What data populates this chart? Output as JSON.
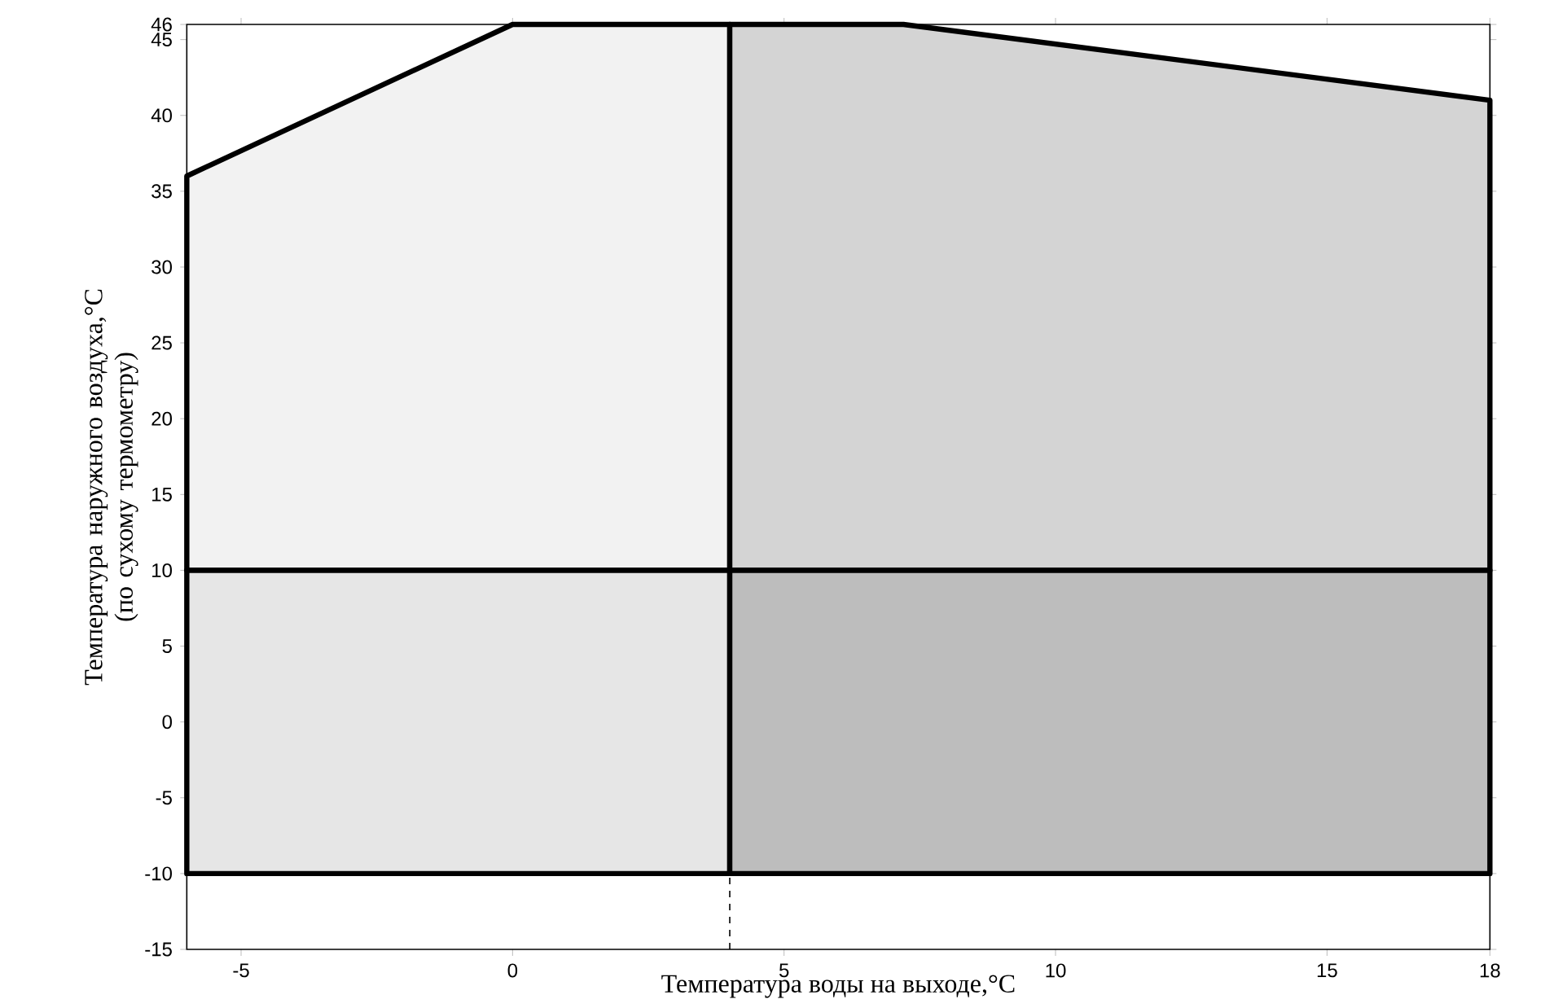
{
  "chart_data": {
    "type": "area",
    "xlabel": "Температура воды на выходе,°C",
    "ylabel": "Температура наружного воздуха,°C (по сухому термометру)",
    "xlim": [
      -6,
      18
    ],
    "xticks": [
      -5,
      0,
      5,
      10,
      15,
      18
    ],
    "ylim": [
      -15,
      46
    ],
    "yticks": [
      -15,
      -10,
      -5,
      0,
      5,
      10,
      15,
      20,
      25,
      30,
      35,
      40,
      45,
      46
    ],
    "series": [
      {
        "color": "#f2f2f2",
        "x": [
          -6,
          0,
          4,
          4,
          -6
        ],
        "values": [
          36,
          46,
          46,
          10,
          10
        ]
      },
      {
        "color": "#d4d4d4",
        "x": [
          4,
          7.2,
          18,
          18,
          4
        ],
        "values": [
          46,
          46,
          41,
          10,
          10
        ]
      },
      {
        "color": "#e6e6e6",
        "x": [
          -6,
          4,
          4,
          -6
        ],
        "values": [
          10,
          10,
          -10,
          -10
        ]
      },
      {
        "color": "#bdbdbd",
        "x": [
          4,
          18,
          18,
          4
        ],
        "values": [
          10,
          10,
          -10,
          -10
        ]
      }
    ],
    "ref_lines": [
      {
        "axis": "x",
        "value": 4,
        "line_style": "dashed"
      }
    ],
    "grid": false
  }
}
